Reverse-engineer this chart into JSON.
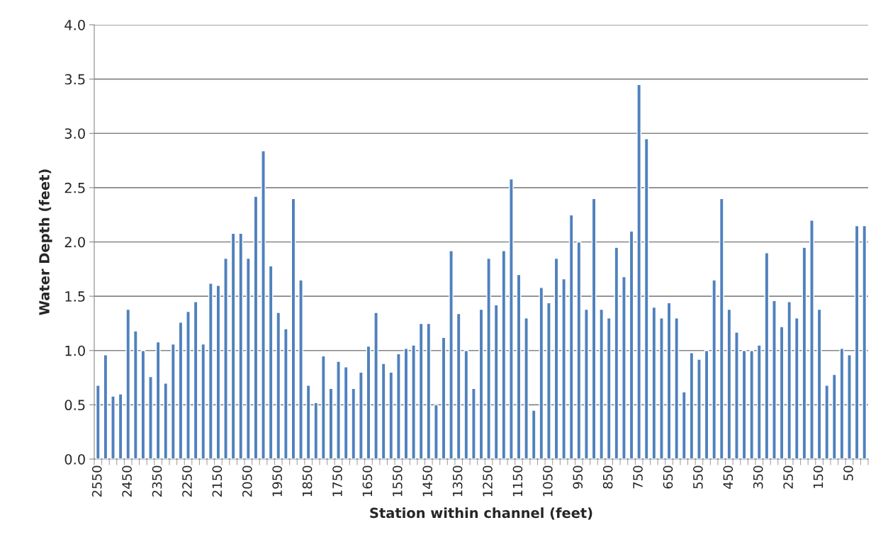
{
  "chart_data": {
    "type": "bar",
    "xlabel": "Station within channel (feet)",
    "ylabel": "Water Depth (feet)",
    "categories": [
      "2550",
      null,
      null,
      null,
      "2450",
      null,
      null,
      null,
      "2350",
      null,
      null,
      null,
      "2250",
      null,
      null,
      null,
      "2150",
      null,
      null,
      null,
      "2050",
      null,
      null,
      null,
      "1950",
      null,
      null,
      null,
      "1850",
      null,
      null,
      null,
      "1750",
      null,
      null,
      null,
      "1650",
      null,
      null,
      null,
      "1550",
      null,
      null,
      null,
      "1450",
      null,
      null,
      null,
      "1350",
      null,
      null,
      null,
      "1250",
      null,
      null,
      null,
      "1150",
      null,
      null,
      null,
      "1050",
      null,
      null,
      null,
      "950",
      null,
      null,
      null,
      "850",
      null,
      null,
      null,
      "750",
      null,
      null,
      null,
      "650",
      null,
      null,
      null,
      "550",
      null,
      null,
      null,
      "450",
      null,
      null,
      null,
      "350",
      null,
      null,
      null,
      "250",
      null,
      null,
      null,
      "150",
      null,
      null,
      null,
      "50",
      null,
      null
    ],
    "values": [
      0.68,
      0.96,
      0.58,
      0.6,
      1.38,
      1.18,
      1.0,
      0.76,
      1.08,
      0.7,
      1.06,
      1.26,
      1.36,
      1.45,
      1.06,
      1.62,
      1.6,
      1.85,
      2.08,
      2.08,
      1.85,
      2.42,
      2.84,
      1.78,
      1.35,
      1.2,
      2.4,
      1.65,
      0.68,
      0.52,
      0.95,
      0.65,
      0.9,
      0.85,
      0.65,
      0.8,
      1.04,
      1.35,
      0.88,
      0.8,
      0.97,
      1.02,
      1.05,
      1.25,
      1.25,
      0.5,
      1.12,
      1.92,
      1.34,
      1.0,
      0.65,
      1.38,
      1.85,
      1.42,
      1.92,
      2.58,
      1.7,
      1.3,
      0.45,
      1.58,
      1.44,
      1.85,
      1.66,
      2.25,
      2.0,
      1.38,
      2.4,
      1.38,
      1.3,
      1.95,
      1.68,
      2.1,
      3.45,
      2.95,
      1.4,
      1.3,
      1.44,
      1.3,
      0.62,
      0.98,
      0.92,
      1.0,
      1.65,
      2.4,
      1.38,
      1.17,
      1.0,
      1.0,
      1.05,
      1.9,
      1.46,
      1.22,
      1.45,
      1.3,
      1.95,
      2.2,
      1.38,
      0.68,
      0.78,
      1.02,
      0.96,
      2.15,
      2.15
    ],
    "color": "#4f81bd",
    "ylim": [
      0,
      4
    ],
    "yticks": [
      {
        "value": 0,
        "label": "0.0"
      },
      {
        "value": 0.5,
        "label": "0.5"
      },
      {
        "value": 1,
        "label": "1.0"
      },
      {
        "value": 1.5,
        "label": "1.5"
      },
      {
        "value": 2,
        "label": "2.0"
      },
      {
        "value": 2.5,
        "label": "2.5"
      },
      {
        "value": 3,
        "label": "3.0"
      },
      {
        "value": 3.5,
        "label": "3.5"
      },
      {
        "value": 4,
        "label": "4.0"
      }
    ],
    "grid": "y"
  }
}
